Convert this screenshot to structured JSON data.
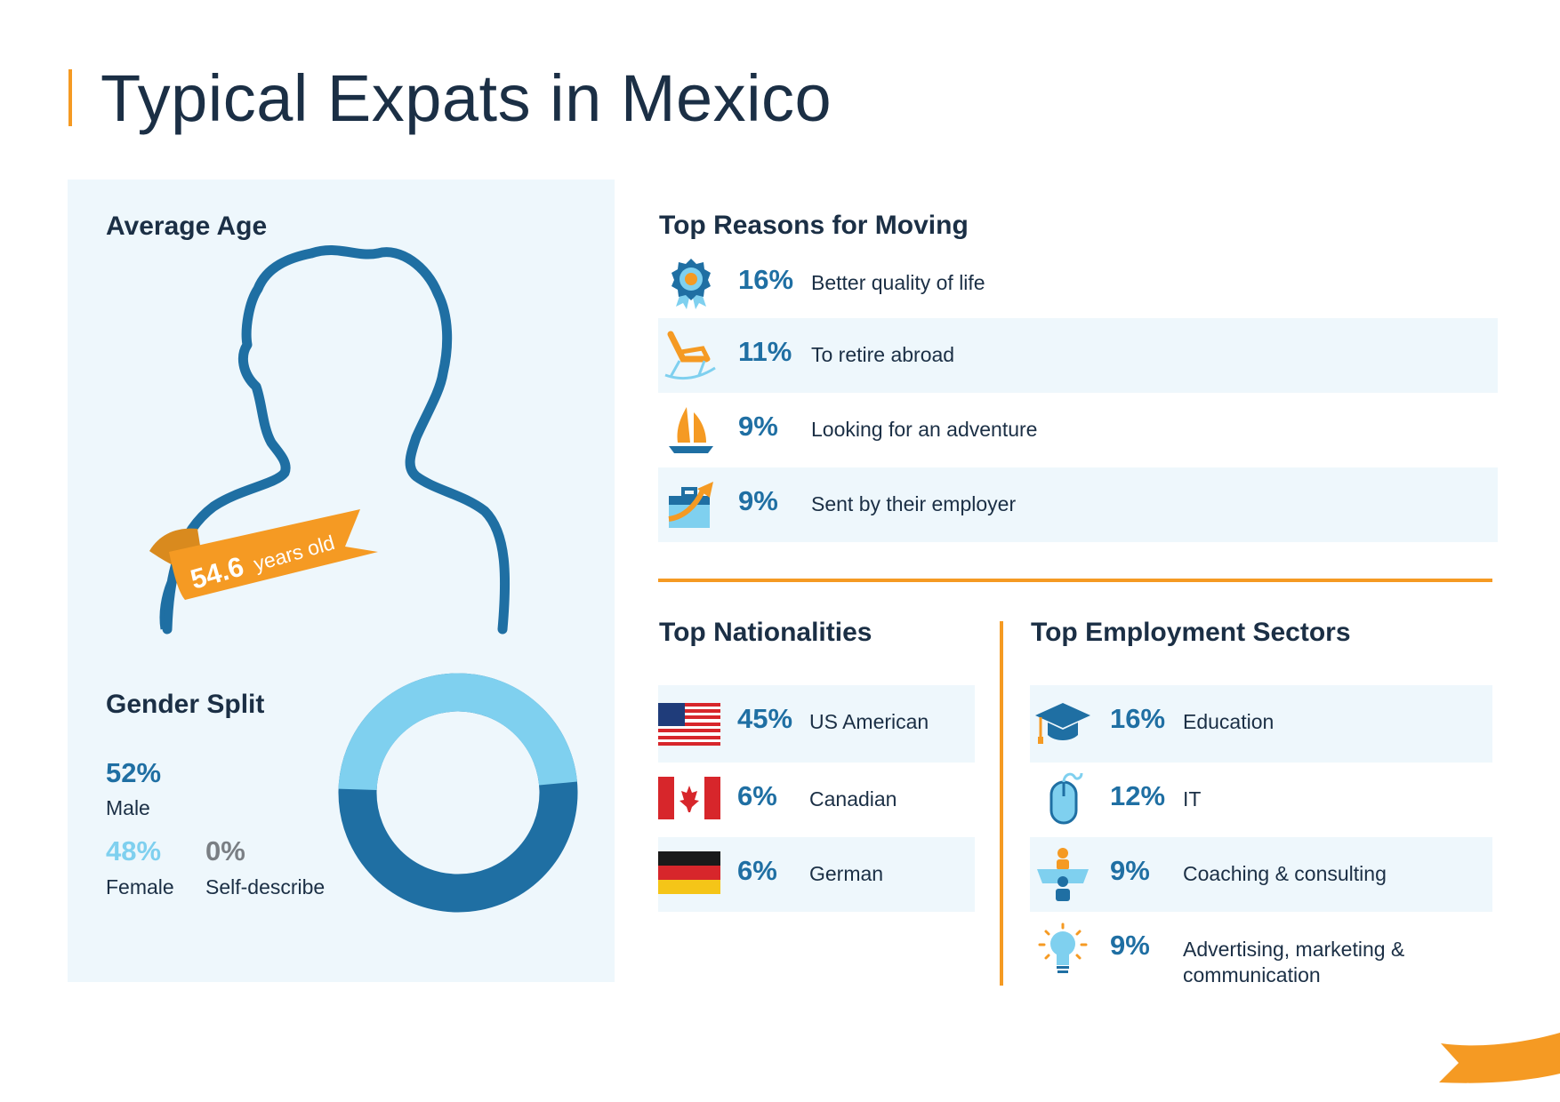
{
  "title": "Typical Expats in Mexico",
  "average_age": {
    "heading": "Average Age",
    "value": "54.6",
    "unit": "years old"
  },
  "gender_split": {
    "heading": "Gender Split",
    "male": {
      "percent": "52%",
      "label": "Male",
      "value": 52
    },
    "female": {
      "percent": "48%",
      "label": "Female",
      "value": 48
    },
    "other": {
      "percent": "0%",
      "label": "Self-describe",
      "value": 0
    },
    "colors": {
      "male": "#1f6fa3",
      "female": "#7fd0ef"
    }
  },
  "reasons": {
    "heading": "Top Reasons for Moving",
    "items": [
      {
        "percent": "16%",
        "label": "Better quality of life",
        "icon": "award-rosette-icon"
      },
      {
        "percent": "11%",
        "label": "To retire abroad",
        "icon": "rocking-chair-icon"
      },
      {
        "percent": "9%",
        "label": "Looking for an adventure",
        "icon": "sailboat-icon"
      },
      {
        "percent": "9%",
        "label": "Sent by their employer",
        "icon": "briefcase-arrow-icon"
      }
    ]
  },
  "nationalities": {
    "heading": "Top Nationalities",
    "items": [
      {
        "percent": "45%",
        "label": "US American",
        "icon": "us-flag-icon"
      },
      {
        "percent": "6%",
        "label": "Canadian",
        "icon": "canada-flag-icon"
      },
      {
        "percent": "6%",
        "label": "German",
        "icon": "germany-flag-icon"
      }
    ]
  },
  "sectors": {
    "heading": "Top Employment Sectors",
    "items": [
      {
        "percent": "16%",
        "label": "Education",
        "icon": "graduation-cap-icon"
      },
      {
        "percent": "12%",
        "label": "IT",
        "icon": "computer-mouse-icon"
      },
      {
        "percent": "9%",
        "label": "Coaching & consulting",
        "icon": "presenter-icon"
      },
      {
        "percent": "9%",
        "label": "Advertising, marketing &",
        "label_line2": "communication",
        "icon": "lightbulb-icon"
      }
    ]
  },
  "colors": {
    "accent": "#f59a23",
    "dark_blue": "#1f6fa3",
    "light_blue": "#7fd0ef",
    "panel": "#eef7fc",
    "text": "#1b2f45"
  }
}
